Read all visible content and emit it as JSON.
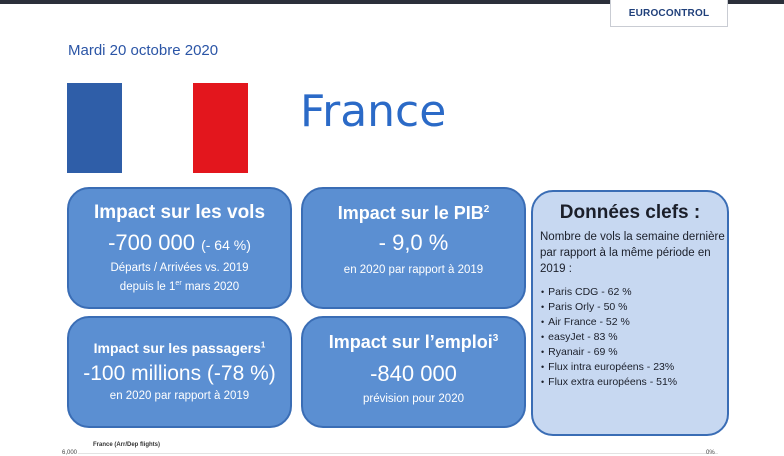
{
  "header": {
    "brand": "EUROCONTROL"
  },
  "date": "Mardi 20 octobre 2020",
  "country": "France",
  "flag": {
    "left_color": "#2f5ea8",
    "right_color": "#e3161d"
  },
  "cards": {
    "vols": {
      "title": "Impact sur les vols",
      "value": "-700 000",
      "pct": "(- 64 %)",
      "line1": "Départs / Arrivées vs. 2019",
      "line2_prefix": "depuis le 1",
      "line2_sup": "er",
      "line2_suffix": " mars 2020"
    },
    "pib": {
      "title": "Impact sur le PIB",
      "title_sup": "2",
      "value": "- 9,0 %",
      "sub": "en 2020 par rapport à 2019"
    },
    "passagers": {
      "title": "Impact sur les passagers",
      "title_sup": "1",
      "value": "-100 millions (-78 %)",
      "sub": "en 2020 par rapport à 2019"
    },
    "emploi": {
      "title": "Impact sur l’emploi",
      "title_sup": "3",
      "value": "-840 000",
      "sub": "prévision pour 2020"
    }
  },
  "key_data": {
    "title": "Données clefs :",
    "intro": "Nombre de vols la semaine dernière par rapport à la même période en 2019 :",
    "items": [
      "Paris CDG  - 62 %",
      "Paris Orly  - 50 %",
      "Air France  - 52 %",
      "easyJet  - 83 %",
      "Ryanair  - 69 %",
      "Flux intra européens  - 23%",
      "Flux extra européens  - 51%"
    ]
  },
  "chart_peek": {
    "title": "France (Arr/Dep flights)",
    "tick": "6,000",
    "end": "0%"
  }
}
